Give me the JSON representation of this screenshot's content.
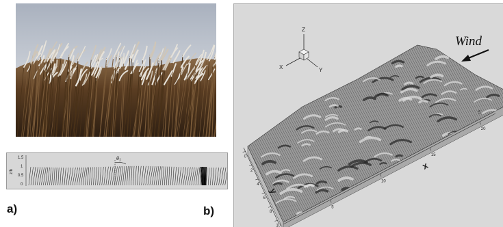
{
  "panel_labels": {
    "a": "a)",
    "b": "b)"
  },
  "plot1d": {
    "ylabel": "z/h",
    "y_ticks": [
      "1.5",
      "1",
      "0.5",
      "0"
    ],
    "angle_label": "θ",
    "angle_sub": "1"
  },
  "view3d": {
    "wind_label": "Wind",
    "triad": {
      "z": "Z",
      "x": "X",
      "y": "Y"
    },
    "x_axis_label": "x",
    "y_axis_label": "y",
    "x_ticks": [
      "5",
      "10",
      "15",
      "20"
    ],
    "y_ticks": [
      "0",
      "2",
      "4",
      "6",
      "8",
      "10"
    ],
    "top_ticks": [
      "0",
      "5"
    ]
  },
  "colors": {
    "sky": "#c4cad3",
    "crop": "#5a3d22",
    "panel_bg": "#d9d9d9",
    "surface": "#8a8a8a"
  }
}
